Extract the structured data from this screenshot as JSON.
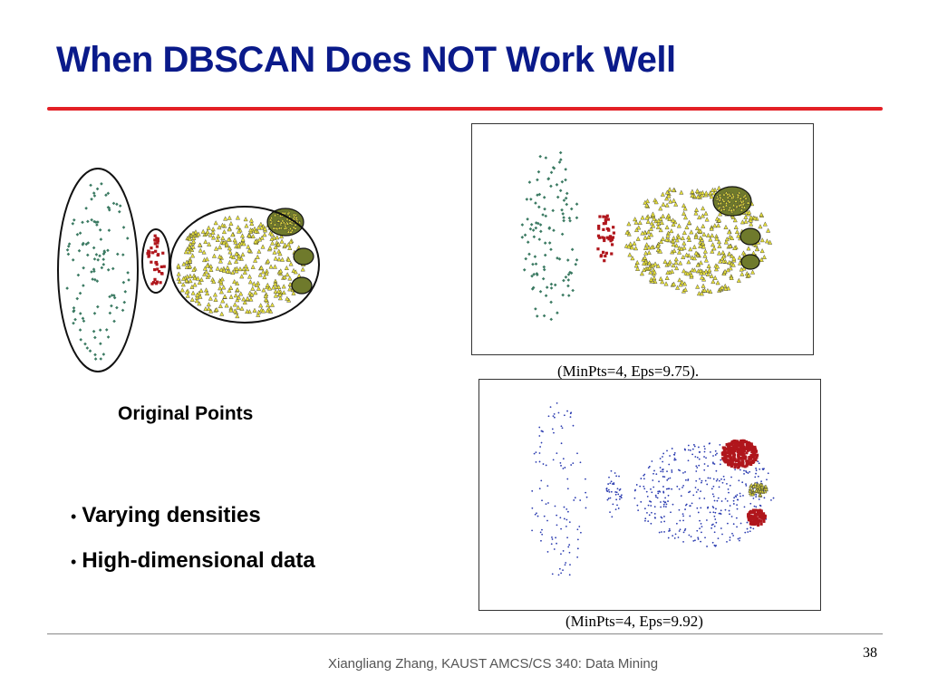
{
  "slide": {
    "title": "When DBSCAN Does NOT Work Well",
    "original_label": "Original Points",
    "caption_top": "(MinPts=4, Eps=9.75).",
    "caption_bottom": "(MinPts=4, Eps=9.92)",
    "bullets": [
      "Varying densities",
      "High-dimensional data"
    ],
    "footer": "Xiangliang Zhang, KAUST AMCS/CS 340: Data Mining",
    "page_number": "38"
  },
  "colors": {
    "title": "#0a1a8a",
    "rule": "#e32026",
    "noise_green": "#3b7a62",
    "cluster_red": "#b0161c",
    "cluster_yellow": "#e8e13a",
    "noise_blue": "#2a3bb0"
  }
}
